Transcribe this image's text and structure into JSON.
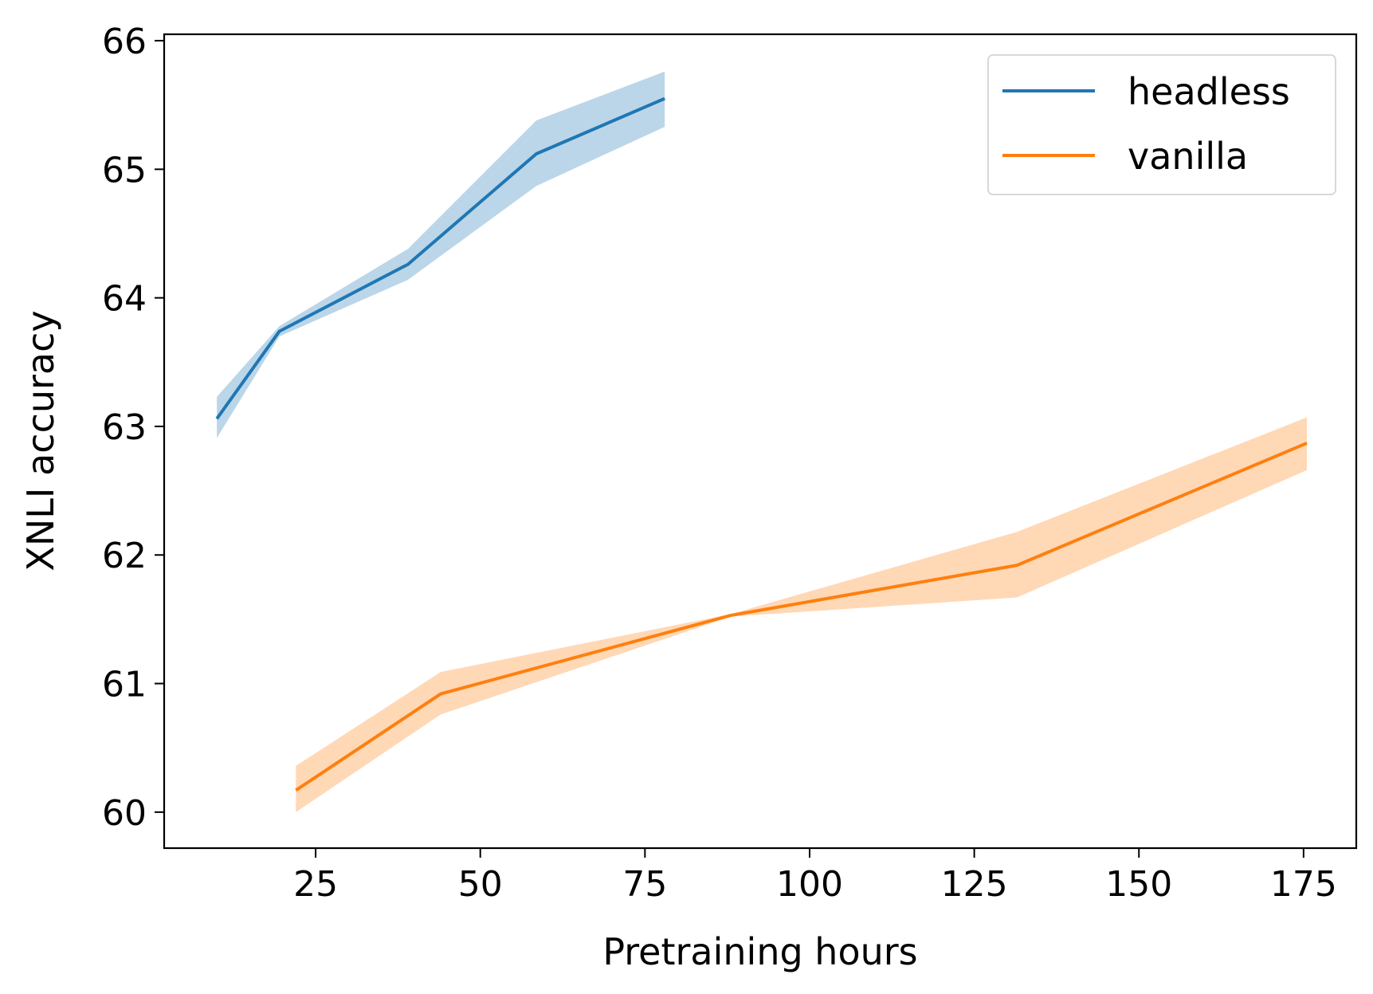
{
  "chart_data": {
    "type": "line",
    "xlabel": "Pretraining hours",
    "ylabel": "XNLI accuracy",
    "xlim": [
      2,
      183
    ],
    "ylim": [
      59.72,
      66.05
    ],
    "xticks": [
      25,
      50,
      75,
      100,
      125,
      150,
      175
    ],
    "yticks": [
      60,
      61,
      62,
      63,
      64,
      65,
      66
    ],
    "grid": false,
    "legend": {
      "position": "top-right"
    },
    "series": [
      {
        "name": "headless",
        "color": "#1f77b4",
        "band_color": "#1f77b4",
        "x": [
          10,
          19.5,
          39,
          58.5,
          78
        ],
        "y": [
          63.06,
          63.74,
          64.26,
          65.12,
          65.55
        ],
        "lower": [
          62.91,
          63.7,
          64.14,
          64.87,
          65.33
        ],
        "upper": [
          63.23,
          63.78,
          64.38,
          65.38,
          65.76
        ]
      },
      {
        "name": "vanilla",
        "color": "#ff7f0e",
        "band_color": "#ff7f0e",
        "x": [
          22,
          44,
          88,
          131.5,
          175.5
        ],
        "y": [
          60.17,
          60.92,
          61.53,
          61.92,
          62.87
        ],
        "lower": [
          60.0,
          60.76,
          61.52,
          61.67,
          62.66
        ],
        "upper": [
          60.36,
          61.09,
          61.54,
          62.18,
          63.07
        ]
      }
    ]
  }
}
